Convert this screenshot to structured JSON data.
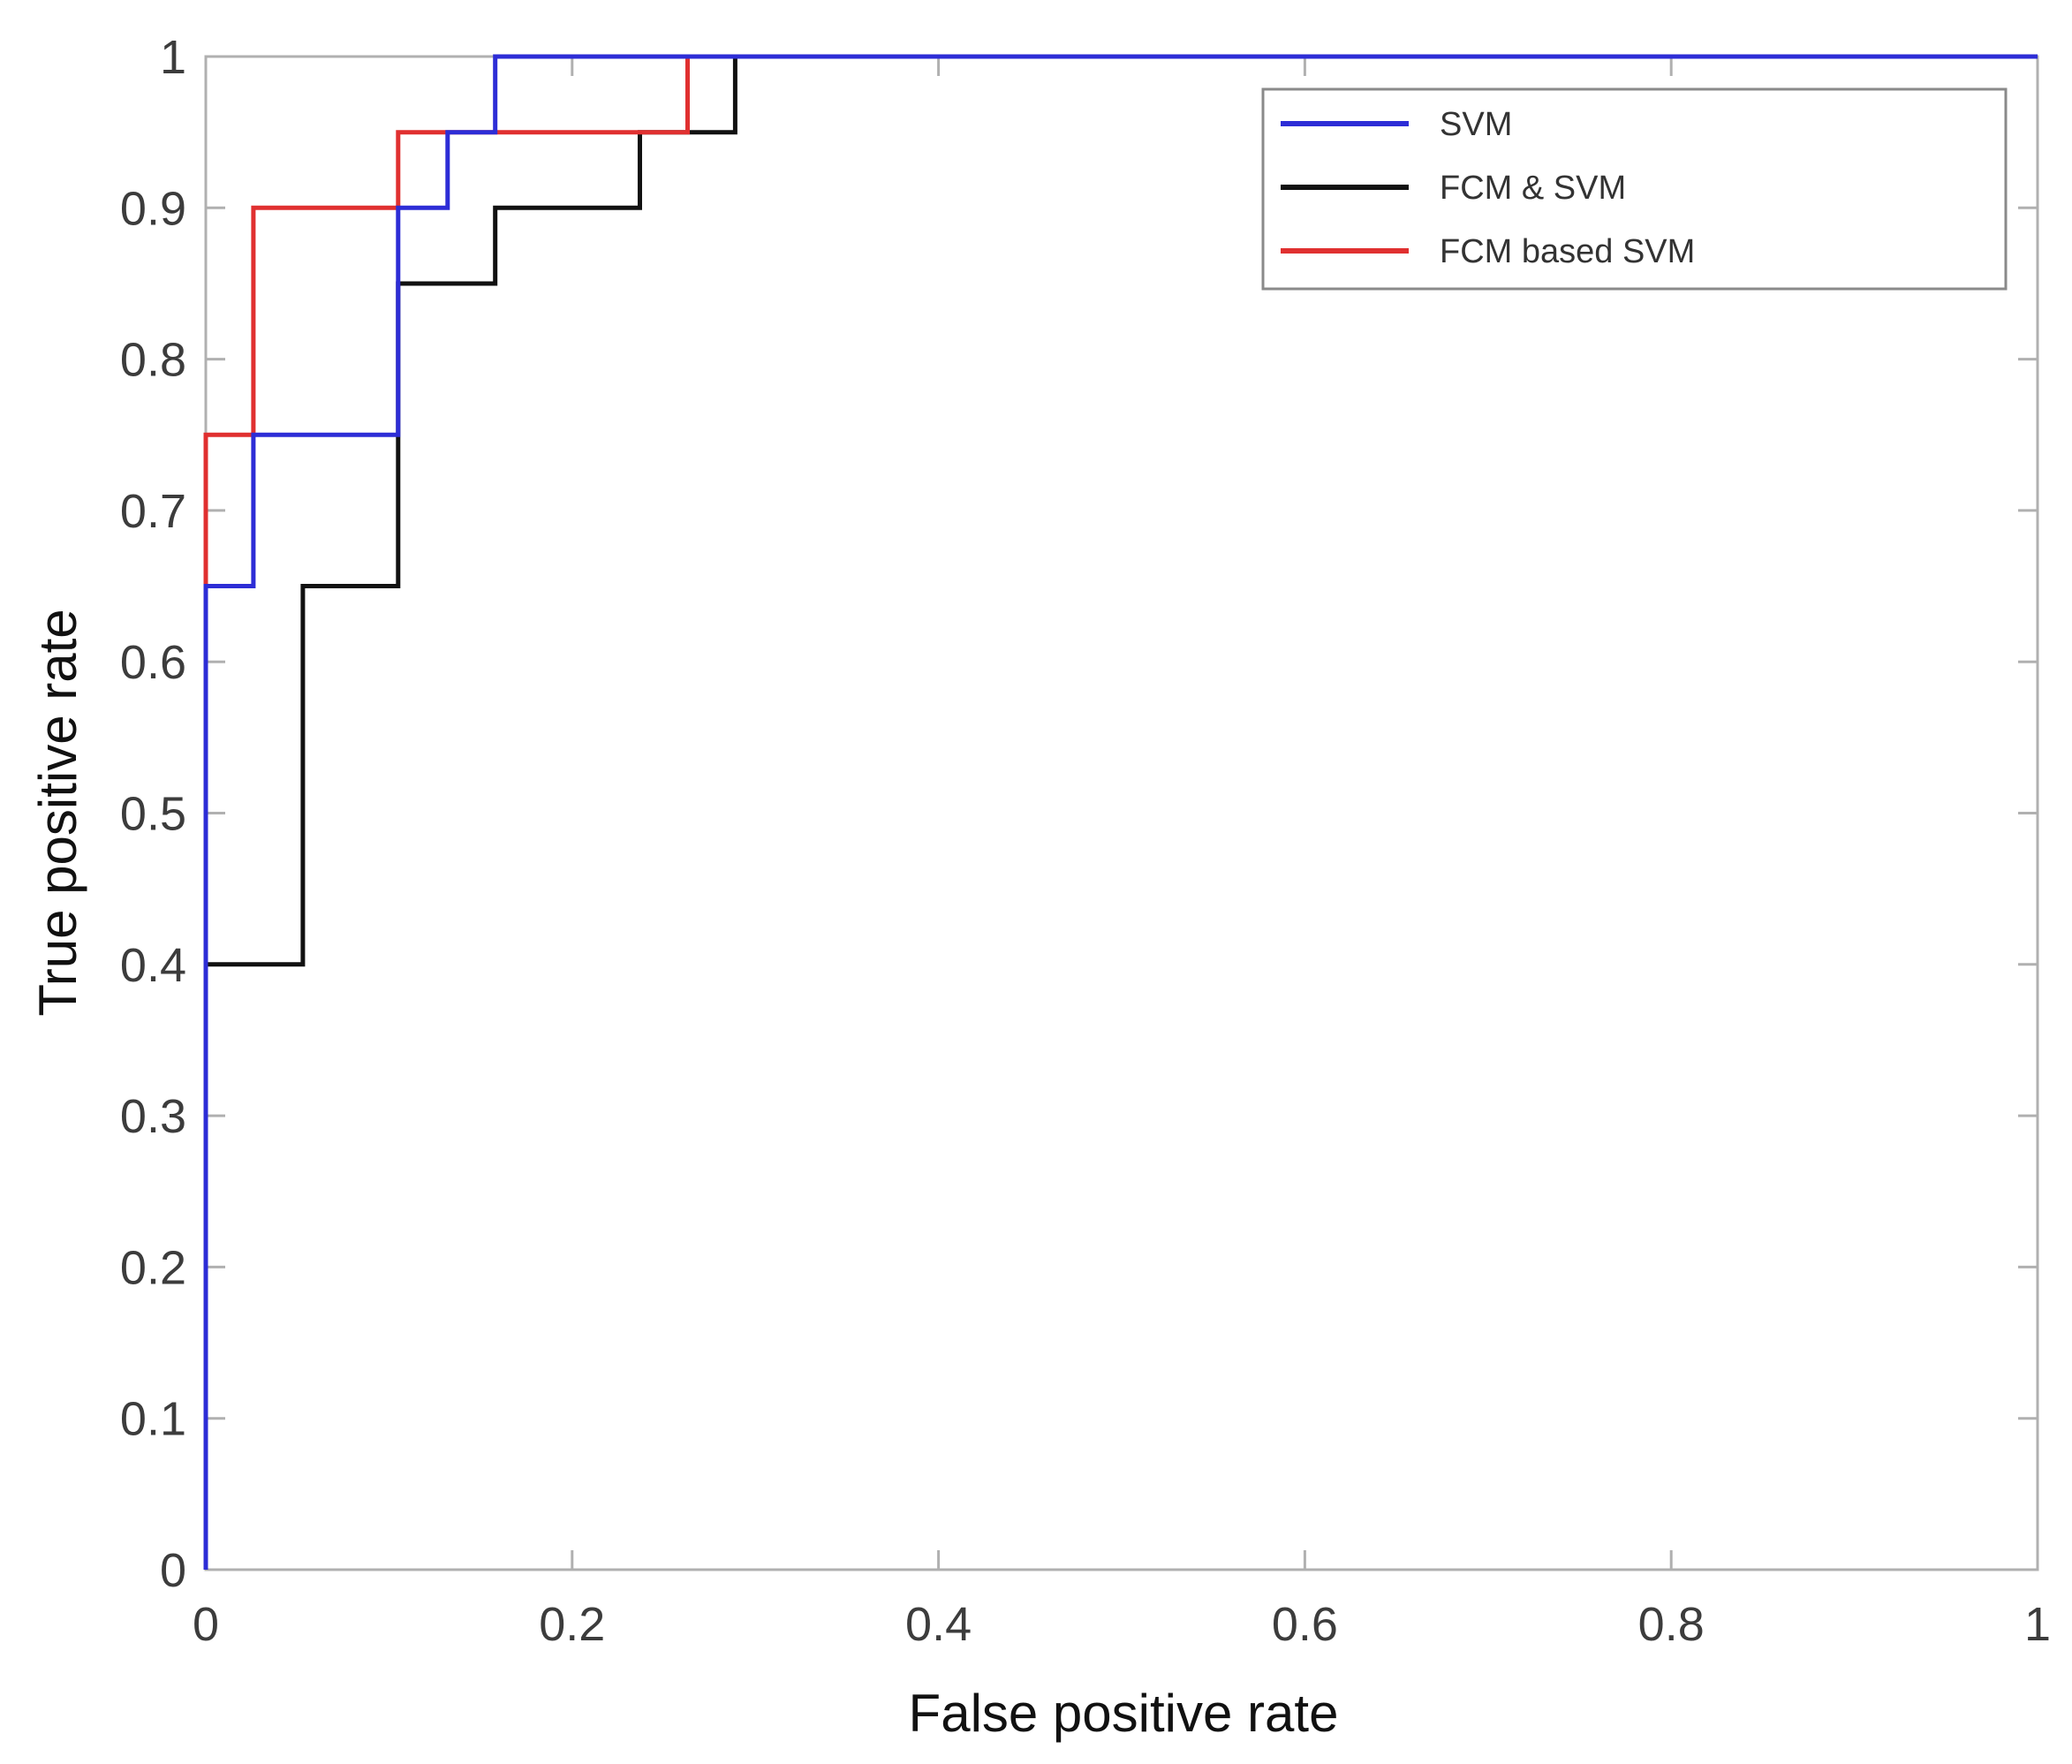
{
  "chart_data": {
    "type": "line",
    "title": "",
    "xlabel": "False positive rate",
    "ylabel": "True positive rate",
    "xlim": [
      0,
      1
    ],
    "ylim": [
      0,
      1
    ],
    "xticks": [
      0,
      0.2,
      0.4,
      0.6,
      0.8,
      1
    ],
    "yticks": [
      0,
      0.1,
      0.2,
      0.3,
      0.4,
      0.5,
      0.6,
      0.7,
      0.8,
      0.9,
      1
    ],
    "xtick_labels": [
      "0",
      "0.2",
      "0.4",
      "0.6",
      "0.8",
      "1"
    ],
    "ytick_labels": [
      "0",
      "0.1",
      "0.2",
      "0.3",
      "0.4",
      "0.5",
      "0.6",
      "0.7",
      "0.8",
      "0.9",
      "1"
    ],
    "grid": false,
    "legend_position": "top-right",
    "series": [
      {
        "name": "FCM & SVM",
        "color": "#111111",
        "x": [
          0,
          0,
          0.053,
          0.053,
          0.105,
          0.105,
          0.158,
          0.158,
          0.237,
          0.237,
          0.289,
          0.289,
          1
        ],
        "y": [
          0,
          0.4,
          0.4,
          0.65,
          0.65,
          0.85,
          0.85,
          0.9,
          0.9,
          0.95,
          0.95,
          1.0,
          1.0
        ]
      },
      {
        "name": "FCM based SVM",
        "color": "#e03030",
        "x": [
          0,
          0,
          0.026,
          0.026,
          0.105,
          0.105,
          0.263,
          0.263,
          1
        ],
        "y": [
          0.65,
          0.75,
          0.75,
          0.9,
          0.9,
          0.95,
          0.95,
          1.0,
          1.0
        ]
      },
      {
        "name": "SVM",
        "color": "#2d2dd6",
        "x": [
          0,
          0,
          0.026,
          0.026,
          0.105,
          0.105,
          0.132,
          0.132,
          0.158,
          0.158,
          1
        ],
        "y": [
          0,
          0.65,
          0.65,
          0.75,
          0.75,
          0.9,
          0.9,
          0.95,
          0.95,
          1.0,
          1.0
        ]
      }
    ],
    "legend_order": [
      "SVM",
      "FCM & SVM",
      "FCM based SVM"
    ]
  }
}
